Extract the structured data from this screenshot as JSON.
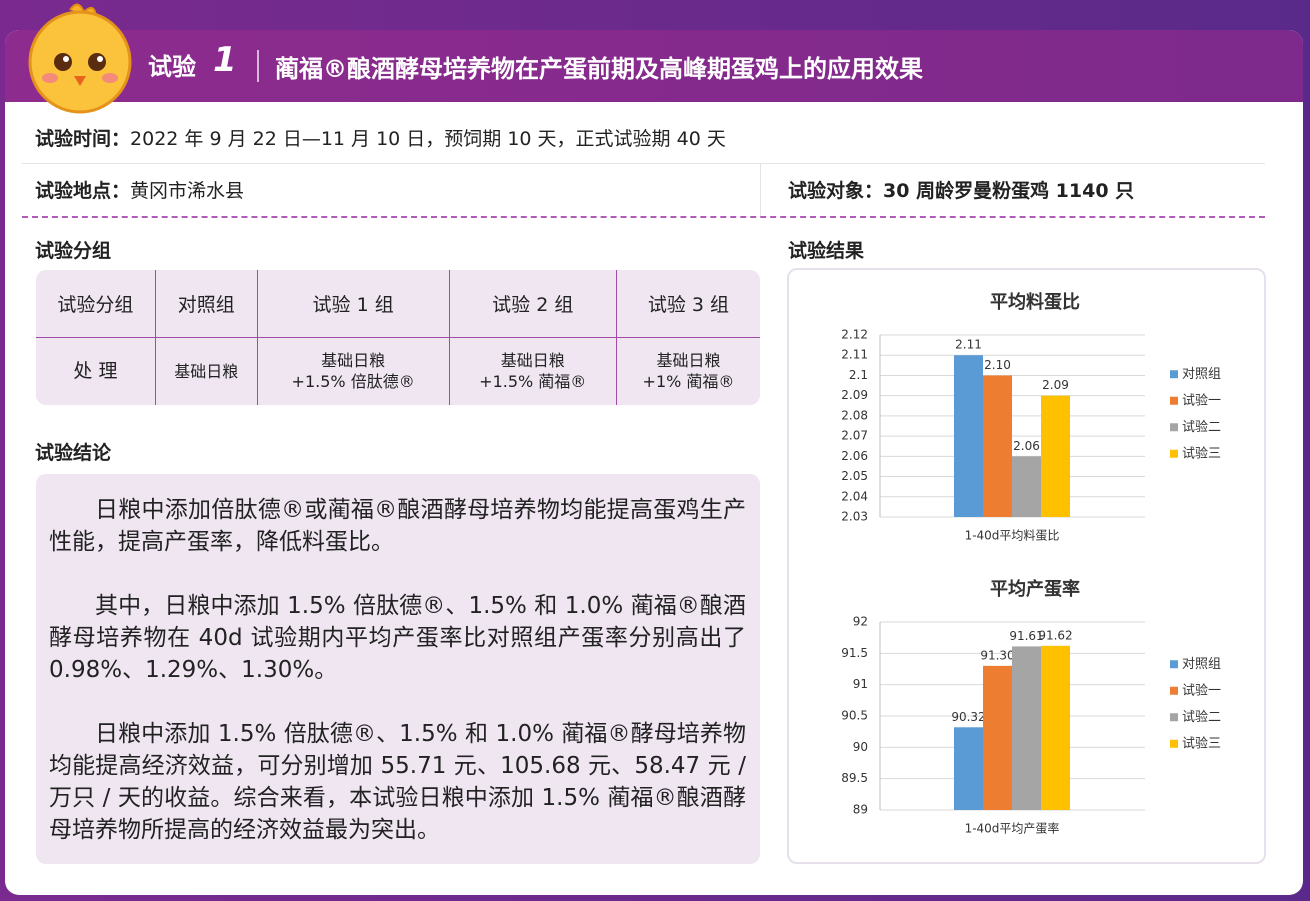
{
  "header": {
    "label": "试验",
    "number": "1",
    "title": "蔺福®酿酒酵母培养物在产蛋前期及高峰期蛋鸡上的应用效果"
  },
  "info": {
    "time": {
      "label": "试验时间：",
      "value": "2022 年 9 月 22 日—11 月 10 日，预饲期 10 天，正式试验期 40 天"
    },
    "location": {
      "label": "试验地点：",
      "value": "黄冈市浠水县"
    },
    "subject": {
      "label": "试验对象：",
      "value": "30 周龄罗曼粉蛋鸡 1140 只"
    }
  },
  "groups": {
    "title": "试验分组",
    "table": {
      "rows": [
        [
          "试验分组",
          "对照组",
          "试验 1 组",
          "试验 2 组",
          "试验 3 组"
        ],
        [
          "处 理",
          "基础日粮",
          "基础日粮\n+1.5% 倍肽德®",
          "基础日粮\n+1.5% 蔺福®",
          "基础日粮\n+1% 蔺福®"
        ]
      ]
    }
  },
  "conclusion": {
    "title": "试验结论",
    "paragraphs": [
      "日粮中添加倍肽德®或蔺福®酿酒酵母培养物均能提高蛋鸡生产性能，提高产蛋率，降低料蛋比。",
      "其中，日粮中添加 1.5% 倍肽德®、1.5% 和 1.0% 蔺福®酿酒酵母培养物在 40d 试验期内平均产蛋率比对照组产蛋率分别高出了 0.98%、1.29%、1.30%。",
      "日粮中添加 1.5% 倍肽德®、1.5% 和 1.0% 蔺福®酵母培养物均能提高经济效益，可分别增加 55.71 元、105.68 元、58.47 元 / 万只 / 天的收益。综合来看，本试验日粮中添加 1.5% 蔺福®酿酒酵母培养物所提高的经济效益最为突出。"
    ]
  },
  "results": {
    "title": "试验结果"
  },
  "chart_data": [
    {
      "type": "bar",
      "title": "平均料蛋比",
      "categories": [
        "1-40d平均料蛋比"
      ],
      "series": [
        {
          "name": "对照组",
          "color": "#5b9bd5",
          "values": [
            2.11
          ]
        },
        {
          "name": "试验一",
          "color": "#ed7d31",
          "values": [
            2.1
          ],
          "value_labels": [
            "2.10"
          ]
        },
        {
          "name": "试验二",
          "color": "#a5a5a5",
          "values": [
            2.06
          ]
        },
        {
          "name": "试验三",
          "color": "#ffc000",
          "values": [
            2.09
          ]
        }
      ],
      "ylim": [
        2.03,
        2.12
      ],
      "yticks": [
        2.03,
        2.04,
        2.05,
        2.06,
        2.07,
        2.08,
        2.09,
        2.1,
        2.11,
        2.12
      ],
      "grid": true,
      "legend": "right"
    },
    {
      "type": "bar",
      "title": "平均产蛋率",
      "categories": [
        "1-40d平均产蛋率"
      ],
      "series": [
        {
          "name": "对照组",
          "color": "#5b9bd5",
          "values": [
            90.32
          ]
        },
        {
          "name": "试验一",
          "color": "#ed7d31",
          "values": [
            91.3
          ],
          "value_labels": [
            "91.30"
          ]
        },
        {
          "name": "试验二",
          "color": "#a5a5a5",
          "values": [
            91.61
          ]
        },
        {
          "name": "试验三",
          "color": "#ffc000",
          "values": [
            91.62
          ]
        }
      ],
      "ylim": [
        89,
        92
      ],
      "yticks": [
        89,
        89.5,
        90,
        90.5,
        91,
        91.5,
        92
      ],
      "grid": true,
      "legend": "right"
    }
  ]
}
